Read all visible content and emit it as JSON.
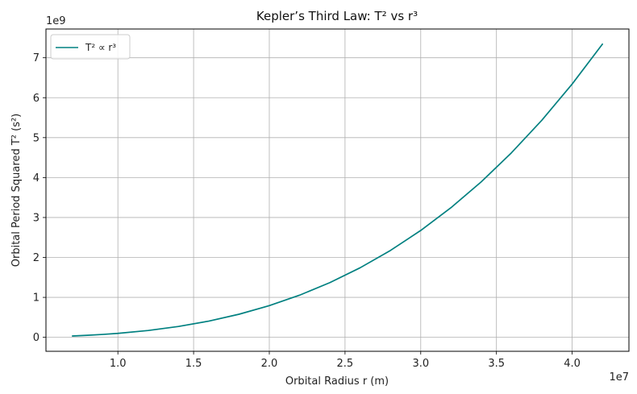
{
  "chart_data": {
    "type": "line",
    "title": "Kepler’s Third Law: T² vs r³",
    "xlabel": "Orbital Radius r (m)",
    "ylabel": "Orbital Period Squared T² (s²)",
    "x_offset_label": "1e7",
    "y_offset_label": "1e9",
    "xlim": [
      0.525,
      4.375
    ],
    "ylim": [
      -0.35,
      7.72
    ],
    "x_ticks": [
      1.0,
      1.5,
      2.0,
      2.5,
      3.0,
      3.5,
      4.0
    ],
    "x_tick_labels": [
      "1.0",
      "1.5",
      "2.0",
      "2.5",
      "3.0",
      "3.5",
      "4.0"
    ],
    "y_ticks": [
      0,
      1,
      2,
      3,
      4,
      5,
      6,
      7
    ],
    "y_tick_labels": [
      "0",
      "1",
      "2",
      "3",
      "4",
      "5",
      "6",
      "7"
    ],
    "grid": true,
    "legend_position": "top-left",
    "series": [
      {
        "name": "T² ∝ r³",
        "color": "#008080",
        "x": [
          0.7,
          0.8,
          0.9,
          1.0,
          1.2,
          1.4,
          1.6,
          1.8,
          2.0,
          2.2,
          2.4,
          2.6,
          2.8,
          3.0,
          3.2,
          3.4,
          3.6,
          3.8,
          4.0,
          4.2
        ],
        "y": [
          0.034,
          0.051,
          0.072,
          0.099,
          0.171,
          0.272,
          0.406,
          0.578,
          0.793,
          1.055,
          1.37,
          1.742,
          2.175,
          2.676,
          3.247,
          3.895,
          4.624,
          5.437,
          6.342,
          7.342
        ]
      }
    ]
  }
}
